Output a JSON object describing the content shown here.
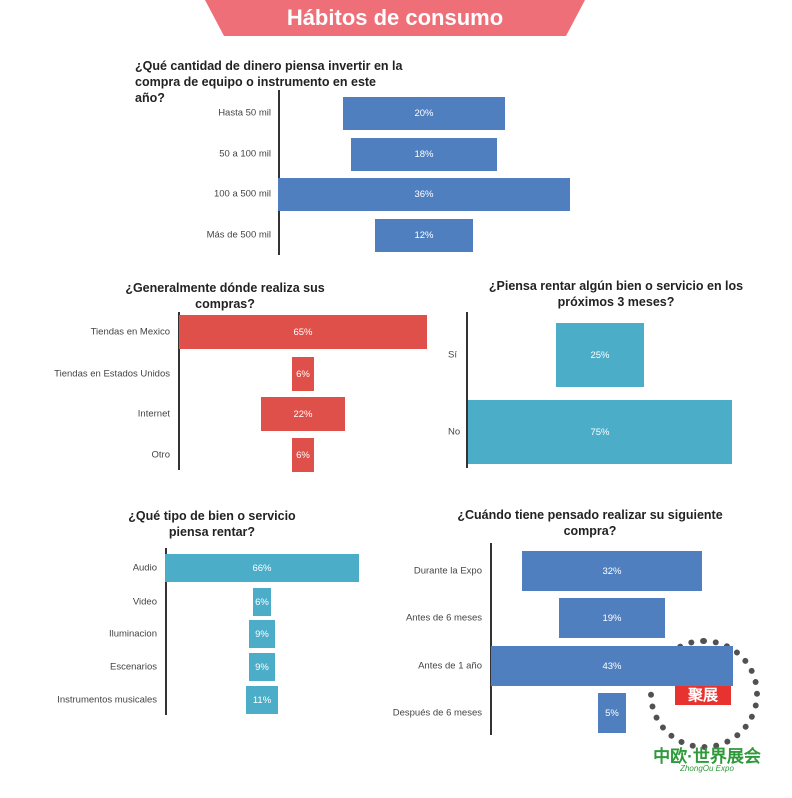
{
  "header": {
    "title": "Hábitos de consumo"
  },
  "chart_data": [
    {
      "type": "bar",
      "orientation": "horizontal",
      "align": "center",
      "color": "#4f7fbf",
      "title": "¿Qué cantidad de dinero piensa invertir en la compra de equipo o instrumento en este año?",
      "categories": [
        "Hasta 50 mil",
        "50 a 100 mil",
        "100 a 500 mil",
        "Más de 500 mil"
      ],
      "values": [
        20,
        18,
        36,
        12
      ],
      "value_labels": [
        "20%",
        "18%",
        "36%",
        "12%"
      ]
    },
    {
      "type": "bar",
      "orientation": "horizontal",
      "align": "center",
      "color": "#e0504a",
      "title": "¿Generalmente dónde realiza sus compras?",
      "categories": [
        "Tiendas en Mexico",
        "Tiendas en Estados Unidos",
        "Internet",
        "Otro"
      ],
      "values": [
        65,
        6,
        22,
        6
      ],
      "value_labels": [
        "65%",
        "6%",
        "22%",
        "6%"
      ]
    },
    {
      "type": "bar",
      "orientation": "horizontal",
      "align": "center",
      "color": "#4badc8",
      "title": "¿Piensa rentar algún bien o servicio en los próximos 3 meses?",
      "categories": [
        "Sí",
        "No"
      ],
      "values": [
        25,
        75
      ],
      "value_labels": [
        "25%",
        "75%"
      ]
    },
    {
      "type": "bar",
      "orientation": "horizontal",
      "align": "center",
      "color": "#4badc8",
      "title": "¿Qué tipo de bien o servicio piensa rentar?",
      "categories": [
        "Audio",
        "Video",
        "Iluminacion",
        "Escenarios",
        "Instrumentos musicales"
      ],
      "values": [
        66,
        6,
        9,
        9,
        11
      ],
      "value_labels": [
        "66%",
        "6%",
        "9%",
        "9%",
        "11%"
      ]
    },
    {
      "type": "bar",
      "orientation": "horizontal",
      "align": "center",
      "color": "#4f7fbf",
      "title": "¿Cuándo tiene pensado realizar su siguiente compra?",
      "categories": [
        "Durante la Expo",
        "Antes de 6 meses",
        "Antes de 1 año",
        "Después de 6 meses"
      ],
      "values": [
        32,
        19,
        43,
        5
      ],
      "value_labels": [
        "32%",
        "19%",
        "43%",
        "5%"
      ]
    }
  ],
  "watermark": {
    "badge": "聚展",
    "name": "中欧·世界展会",
    "subtitle": "ZhongOu Expo"
  }
}
